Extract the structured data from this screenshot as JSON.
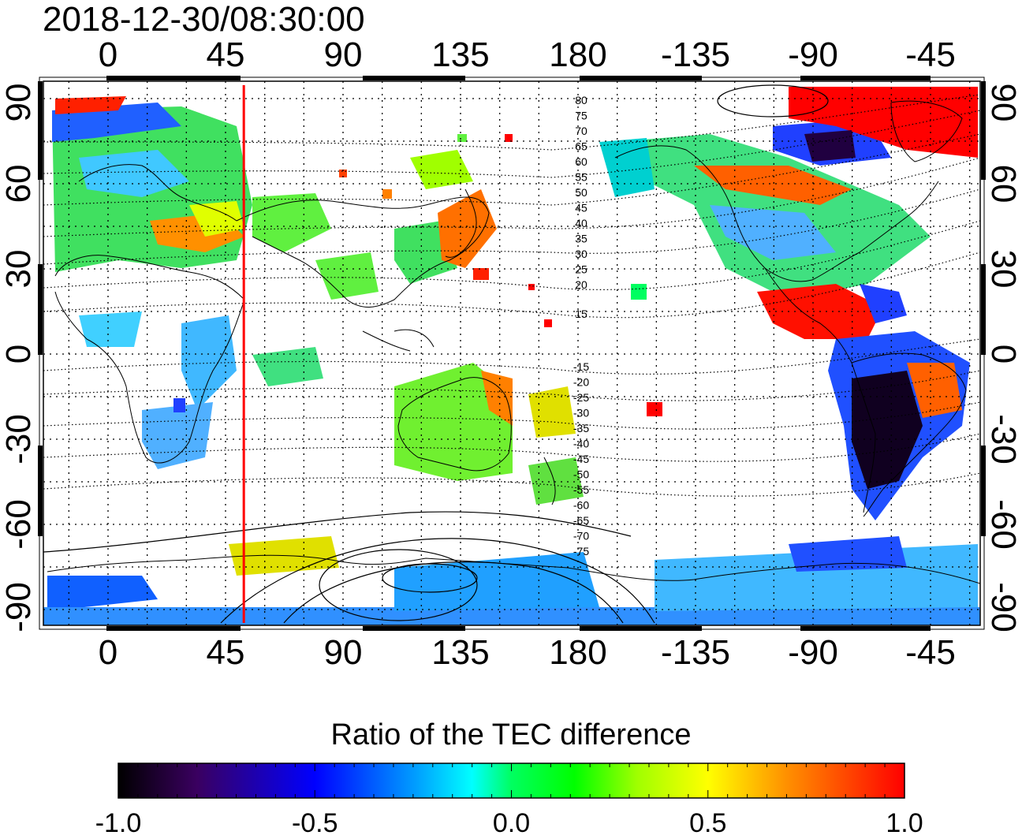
{
  "title": "2018-12-30/08:30:00",
  "lon_ticks_top": [
    "0",
    "45",
    "90",
    "135",
    "180",
    "-135",
    "-90",
    "-45"
  ],
  "lon_ticks_bottom": [
    "0",
    "45",
    "90",
    "135",
    "180",
    "-135",
    "-90",
    "-45"
  ],
  "lat_ticks_left": [
    "90",
    "60",
    "30",
    "0",
    "-30",
    "-60",
    "-90"
  ],
  "lat_ticks_right": [
    "90",
    "60",
    "30",
    "0",
    "-30",
    "-60",
    "-90"
  ],
  "contour_labels_north": [
    "80",
    "75",
    "70",
    "65",
    "60",
    "55",
    "50",
    "45",
    "40",
    "35",
    "30",
    "25",
    "20",
    "15"
  ],
  "contour_labels_south": [
    "-15",
    "-20",
    "-25",
    "-30",
    "-35",
    "-40",
    "-45",
    "-50",
    "-55",
    "-60",
    "-65",
    "-70",
    "-75"
  ],
  "marker_longitude": 52,
  "colorbar": {
    "title": "Ratio of the TEC difference",
    "ticks": [
      "-1.0",
      "-0.5",
      "0.0",
      "0.5",
      "1.0"
    ],
    "range": [
      -1.0,
      1.0
    ],
    "colors": [
      "#000000",
      "#3a0060",
      "#0000ff",
      "#00a0ff",
      "#00ffff",
      "#00ff60",
      "#00ff00",
      "#a0ff00",
      "#ffff00",
      "#ff9000",
      "#ff0000"
    ]
  },
  "map_style": {
    "marker_color": "#ff0000",
    "coast_color": "#000000",
    "background": "#ffffff"
  }
}
